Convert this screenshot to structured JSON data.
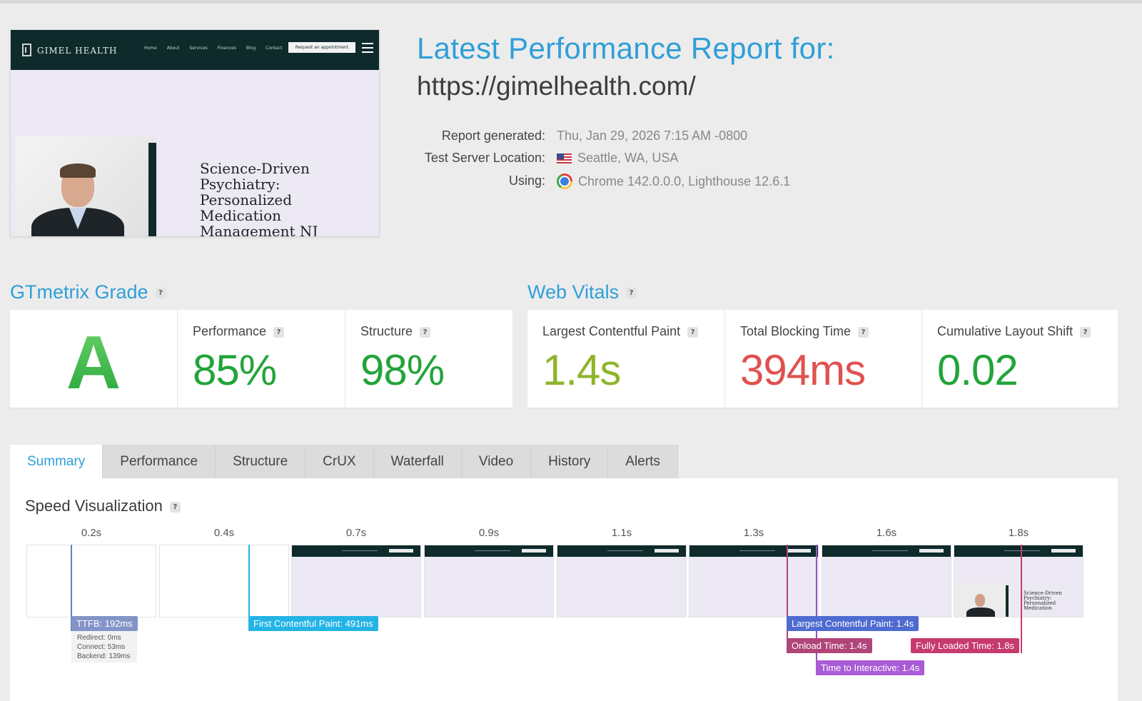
{
  "thumbnail": {
    "logo_text": "GIMEL HEALTH",
    "menu": [
      "Home",
      "About",
      "Services",
      "Finances",
      "Blog",
      "Contact"
    ],
    "cta": "Request an appointment",
    "headline": "Science-Driven Psychiatry: Personalized Medication Management NJ"
  },
  "report": {
    "title": "Latest Performance Report for:",
    "url": "https://gimelhealth.com/",
    "generated_label": "Report generated:",
    "generated_value": "Thu, Jan 29, 2026 7:15 AM -0800",
    "location_label": "Test Server Location:",
    "location_value": "Seattle, WA, USA",
    "using_label": "Using:",
    "using_value": "Chrome 142.0.0.0, Lighthouse 12.6.1"
  },
  "grade": {
    "title": "GTmetrix Grade",
    "letter": "A",
    "performance_label": "Performance",
    "performance_value": "85%",
    "structure_label": "Structure",
    "structure_value": "98%"
  },
  "vitals": {
    "title": "Web Vitals",
    "lcp_label": "Largest Contentful Paint",
    "lcp_value": "1.4s",
    "tbt_label": "Total Blocking Time",
    "tbt_value": "394ms",
    "cls_label": "Cumulative Layout Shift",
    "cls_value": "0.02"
  },
  "colors": {
    "accent": "#2f9fd8",
    "good": "#22a43a",
    "ok": "#8fb52a",
    "bad": "#e0514f"
  },
  "tabs": [
    "Summary",
    "Performance",
    "Structure",
    "CrUX",
    "Waterfall",
    "Video",
    "History",
    "Alerts"
  ],
  "active_tab": "Summary",
  "speed": {
    "title": "Speed Visualization",
    "ticks": [
      "0.2s",
      "0.4s",
      "0.7s",
      "0.9s",
      "1.1s",
      "1.3s",
      "1.6s",
      "1.8s"
    ],
    "frames_loaded": [
      false,
      false,
      true,
      true,
      true,
      true,
      true,
      true
    ],
    "frames_with_content": [
      false,
      false,
      false,
      false,
      false,
      false,
      false,
      true
    ],
    "frame_text": "Science-Driven Psychiatry: Personalized Medication",
    "markers": {
      "ttfb": "TTFB: 192ms",
      "fcp": "First Contentful Paint: 491ms",
      "lcp": "Largest Contentful Paint: 1.4s",
      "onload": "Onload Time: 1.4s",
      "tti": "Time to Interactive: 1.4s",
      "fully_loaded": "Fully Loaded Time: 1.8s"
    },
    "ttfb_detail": [
      "Redirect: 0ms",
      "Connect: 53ms",
      "Backend: 139ms"
    ]
  }
}
